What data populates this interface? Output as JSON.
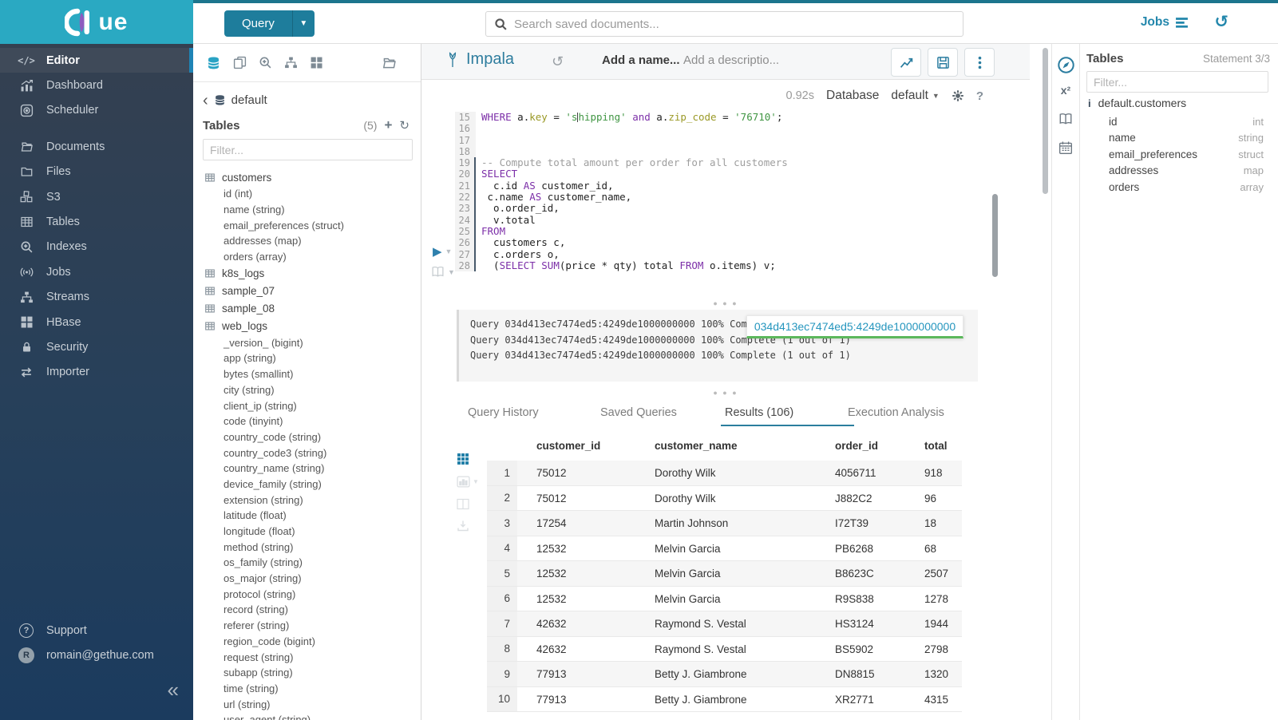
{
  "brand": {
    "name": "HUE",
    "logo_tail": "ue"
  },
  "topbar": {
    "query_button": "Query",
    "search_placeholder": "Search saved documents...",
    "jobs_label": "Jobs"
  },
  "sidebar": {
    "items": [
      {
        "label": "Editor",
        "icon": "code",
        "active": true
      },
      {
        "label": "Dashboard",
        "icon": "dashboard",
        "active": false
      },
      {
        "label": "Scheduler",
        "icon": "scheduler",
        "active": false
      },
      {
        "label": "Documents",
        "icon": "folder-open",
        "active": false
      },
      {
        "label": "Files",
        "icon": "folder",
        "active": false
      },
      {
        "label": "S3",
        "icon": "cubes",
        "active": false
      },
      {
        "label": "Tables",
        "icon": "table",
        "active": false
      },
      {
        "label": "Indexes",
        "icon": "search-plus",
        "active": false
      },
      {
        "label": "Jobs",
        "icon": "broadcast",
        "active": false
      },
      {
        "label": "Streams",
        "icon": "sitemap",
        "active": false
      },
      {
        "label": "HBase",
        "icon": "grid4",
        "active": false
      },
      {
        "label": "Security",
        "icon": "lock",
        "active": false
      },
      {
        "label": "Importer",
        "icon": "exchange",
        "active": false
      }
    ],
    "footer": {
      "support_label": "Support",
      "user_email": "romain@gethue.com",
      "avatar_initial": "R",
      "collapse_glyph": "«"
    }
  },
  "left_assist": {
    "breadcrumb_db": "default",
    "title": "Tables",
    "count": "(5)",
    "filter_placeholder": "Filter...",
    "tree": [
      {
        "label": "customers",
        "kind": "table"
      },
      {
        "label": "id (int)",
        "kind": "column"
      },
      {
        "label": "name (string)",
        "kind": "column"
      },
      {
        "label": "email_preferences (struct)",
        "kind": "column"
      },
      {
        "label": "addresses (map)",
        "kind": "column"
      },
      {
        "label": "orders (array)",
        "kind": "column"
      },
      {
        "label": "k8s_logs",
        "kind": "table"
      },
      {
        "label": "sample_07",
        "kind": "table"
      },
      {
        "label": "sample_08",
        "kind": "table"
      },
      {
        "label": "web_logs",
        "kind": "table"
      },
      {
        "label": "_version_ (bigint)",
        "kind": "column"
      },
      {
        "label": "app (string)",
        "kind": "column"
      },
      {
        "label": "bytes (smallint)",
        "kind": "column"
      },
      {
        "label": "city (string)",
        "kind": "column"
      },
      {
        "label": "client_ip (string)",
        "kind": "column"
      },
      {
        "label": "code (tinyint)",
        "kind": "column"
      },
      {
        "label": "country_code (string)",
        "kind": "column"
      },
      {
        "label": "country_code3 (string)",
        "kind": "column"
      },
      {
        "label": "country_name (string)",
        "kind": "column"
      },
      {
        "label": "device_family (string)",
        "kind": "column"
      },
      {
        "label": "extension (string)",
        "kind": "column"
      },
      {
        "label": "latitude (float)",
        "kind": "column"
      },
      {
        "label": "longitude (float)",
        "kind": "column"
      },
      {
        "label": "method (string)",
        "kind": "column"
      },
      {
        "label": "os_family (string)",
        "kind": "column"
      },
      {
        "label": "os_major (string)",
        "kind": "column"
      },
      {
        "label": "protocol (string)",
        "kind": "column"
      },
      {
        "label": "record (string)",
        "kind": "column"
      },
      {
        "label": "referer (string)",
        "kind": "column"
      },
      {
        "label": "region_code (bigint)",
        "kind": "column"
      },
      {
        "label": "request (string)",
        "kind": "column"
      },
      {
        "label": "subapp (string)",
        "kind": "column"
      },
      {
        "label": "time (string)",
        "kind": "column"
      },
      {
        "label": "url (string)",
        "kind": "column"
      },
      {
        "label": "user_agent (string)",
        "kind": "column"
      }
    ]
  },
  "editor": {
    "engine": "Impala",
    "name_placeholder": "Add a name...",
    "desc_placeholder": "Add a descriptio...",
    "duration": "0.92s",
    "database_label": "Database",
    "database_value": "default",
    "code": {
      "lines": [
        {
          "no": "15",
          "active": false,
          "segs": [
            [
              "kw",
              "WHERE"
            ],
            [
              "tx",
              " a."
            ],
            [
              "at",
              "key"
            ],
            [
              "tx",
              " = "
            ],
            [
              "str",
              "'s"
            ],
            [
              "cur",
              ""
            ],
            [
              "str",
              "hipping'"
            ],
            [
              "tx",
              " "
            ],
            [
              "kw",
              "and"
            ],
            [
              "tx",
              " a."
            ],
            [
              "at",
              "zip_code"
            ],
            [
              "tx",
              " = "
            ],
            [
              "str",
              "'76710'"
            ],
            [
              "tx",
              ";"
            ]
          ]
        },
        {
          "no": "16",
          "active": false,
          "segs": []
        },
        {
          "no": "17",
          "active": false,
          "segs": []
        },
        {
          "no": "18",
          "active": false,
          "segs": []
        },
        {
          "no": "19",
          "active": true,
          "segs": [
            [
              "cm",
              "-- Compute total amount per order for all customers"
            ]
          ]
        },
        {
          "no": "20",
          "active": true,
          "segs": [
            [
              "kw",
              "SELECT"
            ]
          ]
        },
        {
          "no": "21",
          "active": true,
          "segs": [
            [
              "tx",
              "  c.id "
            ],
            [
              "kw",
              "AS"
            ],
            [
              "tx",
              " customer_id,"
            ]
          ]
        },
        {
          "no": "22",
          "active": true,
          "segs": [
            [
              "tx",
              " c.name "
            ],
            [
              "kw",
              "AS"
            ],
            [
              "tx",
              " customer_name,"
            ]
          ]
        },
        {
          "no": "23",
          "active": true,
          "segs": [
            [
              "tx",
              "  o.order_id,"
            ]
          ]
        },
        {
          "no": "24",
          "active": true,
          "segs": [
            [
              "tx",
              "  v.total"
            ]
          ]
        },
        {
          "no": "25",
          "active": true,
          "segs": [
            [
              "kw",
              "FROM"
            ]
          ]
        },
        {
          "no": "26",
          "active": true,
          "segs": [
            [
              "tx",
              "  customers c,"
            ]
          ]
        },
        {
          "no": "27",
          "active": true,
          "segs": [
            [
              "tx",
              "  c.orders o,"
            ]
          ]
        },
        {
          "no": "28",
          "active": true,
          "segs": [
            [
              "tx",
              "  ("
            ],
            [
              "kw",
              "SELECT"
            ],
            [
              "tx",
              " "
            ],
            [
              "kw",
              "SUM"
            ],
            [
              "tx",
              "(price * qty) total "
            ],
            [
              "kw",
              "FROM"
            ],
            [
              "tx",
              " o.items) v;"
            ]
          ]
        }
      ]
    },
    "logs": [
      "Query 034d413ec7474ed5:4249de1000000000 100% Complete (1 out of 1)",
      "Query 034d413ec7474ed5:4249de1000000000 100% Complete (1 out of 1)",
      "Query 034d413ec7474ed5:4249de1000000000 100% Complete (1 out of 1)"
    ],
    "popover_query_id": "034d413ec7474ed5:4249de1000000000",
    "tabs": [
      "Query History",
      "Saved Queries",
      "Results (106)",
      "Execution Analysis"
    ],
    "active_tab_index": 2
  },
  "results": {
    "columns": [
      "customer_id",
      "customer_name",
      "order_id",
      "total"
    ],
    "rows": [
      [
        "1",
        "75012",
        "Dorothy Wilk",
        "4056711",
        "918"
      ],
      [
        "2",
        "75012",
        "Dorothy Wilk",
        "J882C2",
        "96"
      ],
      [
        "3",
        "17254",
        "Martin Johnson",
        "I72T39",
        "18"
      ],
      [
        "4",
        "12532",
        "Melvin Garcia",
        "PB6268",
        "68"
      ],
      [
        "5",
        "12532",
        "Melvin Garcia",
        "B8623C",
        "2507"
      ],
      [
        "6",
        "12532",
        "Melvin Garcia",
        "R9S838",
        "1278"
      ],
      [
        "7",
        "42632",
        "Raymond S. Vestal",
        "HS3124",
        "1944"
      ],
      [
        "8",
        "42632",
        "Raymond S. Vestal",
        "BS5902",
        "2798"
      ],
      [
        "9",
        "77913",
        "Betty J. Giambrone",
        "DN8815",
        "1320"
      ],
      [
        "10",
        "77913",
        "Betty J. Giambrone",
        "XR2771",
        "4315"
      ]
    ]
  },
  "right_assist": {
    "title": "Tables",
    "statement": "Statement 3/3",
    "filter_placeholder": "Filter...",
    "table_name": "default.customers",
    "columns": [
      {
        "name": "id",
        "type": "int"
      },
      {
        "name": "name",
        "type": "string"
      },
      {
        "name": "email_preferences",
        "type": "struct"
      },
      {
        "name": "addresses",
        "type": "map"
      },
      {
        "name": "orders",
        "type": "array"
      }
    ]
  }
}
